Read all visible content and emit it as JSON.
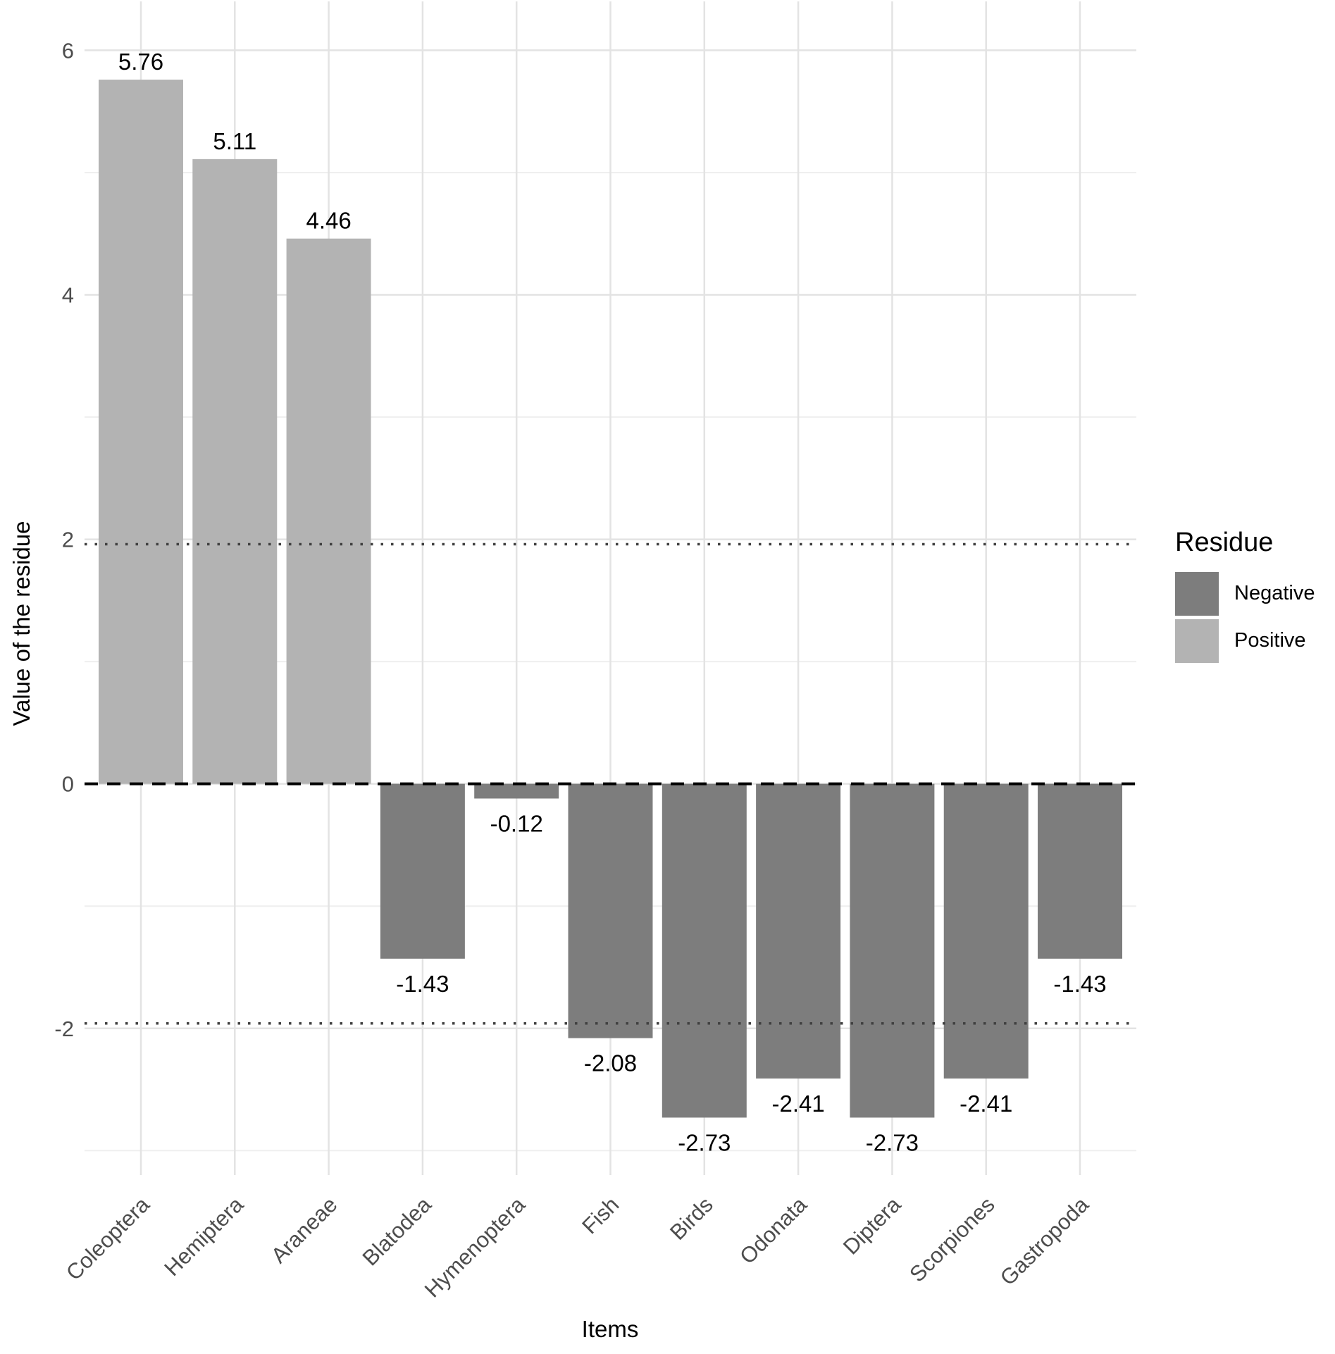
{
  "figure": {
    "background": "#ffffff"
  },
  "chart_data": {
    "type": "bar",
    "title": "",
    "xlabel": "Items",
    "ylabel": "Value of the residue",
    "categories": [
      "Coleoptera",
      "Hemiptera",
      "Araneae",
      "Blatodea",
      "Hymenoptera",
      "Fish",
      "Birds",
      "Odonata",
      "Diptera",
      "Scorpiones",
      "Gastropoda"
    ],
    "values": [
      5.76,
      5.11,
      4.46,
      -1.43,
      -0.12,
      -2.08,
      -2.73,
      -2.41,
      -2.73,
      -2.41,
      -1.43
    ],
    "bar_labels": [
      "5.76",
      "5.11",
      "4.46",
      "-1.43",
      "-0.12",
      "-2.08",
      "-2.73",
      "-2.41",
      "-2.73",
      "-2.41",
      "-1.43"
    ],
    "y_ticks": [
      -2,
      0,
      2,
      4,
      6
    ],
    "y_minor_ticks": [
      -3,
      -1,
      1,
      3,
      5
    ],
    "ylim": [
      -3.2,
      6.4
    ],
    "grid": true,
    "reference_lines": {
      "zero_dashed": 0,
      "dotted": [
        1.96,
        -1.96
      ]
    },
    "legend": {
      "title": "Residue",
      "position": "right",
      "entries": [
        {
          "label": "Negative",
          "color": "#7d7d7d"
        },
        {
          "label": "Positive",
          "color": "#b3b3b3"
        }
      ]
    },
    "colors": {
      "positive": "#b3b3b3",
      "negative": "#7d7d7d",
      "grid_major": "#e3e3e3",
      "grid_minor": "#efefef",
      "axis_text": "#4d4d4d",
      "title_text": "#000000",
      "zero_line": "#000000",
      "dotted_line": "#404040"
    }
  }
}
